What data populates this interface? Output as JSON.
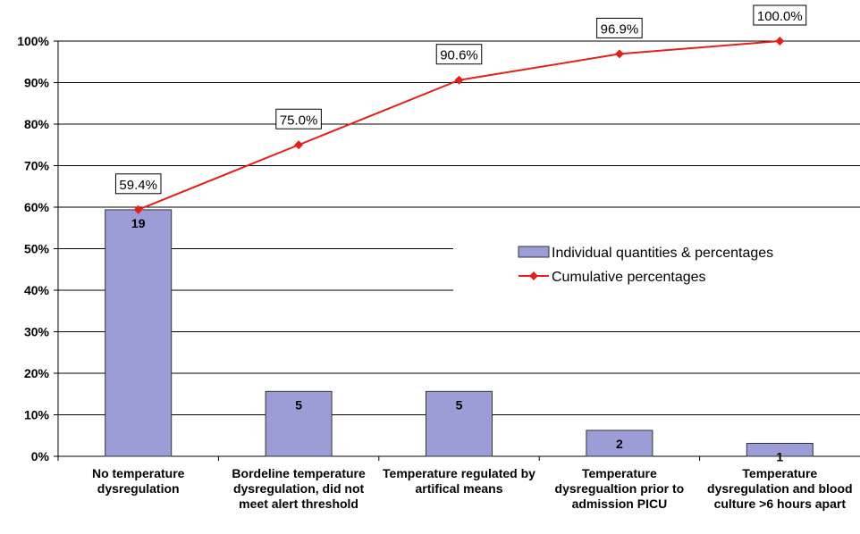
{
  "chart_data": {
    "type": "pareto",
    "categories": [
      "No temperature dysregulation",
      "Bordeline temperature dysregulation, did not meet alert threshold",
      "Temperature regulated by artifical means",
      "Temperature dysregualtion prior to admission PICU",
      "Temperature dysregulation and blood culture >6 hours apart"
    ],
    "series": [
      {
        "name": "Individual quantities & percentages",
        "type": "bar",
        "color": "#9c9cd6",
        "axis": "y2",
        "values": [
          19,
          5,
          5,
          2,
          1
        ]
      },
      {
        "name": "Cumulative percentages",
        "type": "line",
        "color": "#e3211c",
        "values": [
          59.4,
          75.0,
          90.6,
          96.9,
          100.0
        ],
        "value_labels": [
          "59.4%",
          "75.0%",
          "90.6%",
          "96.9%",
          "100.0%"
        ]
      }
    ],
    "ylim": [
      0,
      100
    ],
    "yticks": [
      {
        "value": 0,
        "label": "0%"
      },
      {
        "value": 10,
        "label": "10%"
      },
      {
        "value": 20,
        "label": "20%"
      },
      {
        "value": 30,
        "label": "30%"
      },
      {
        "value": 40,
        "label": "40%"
      },
      {
        "value": 50,
        "label": "50%"
      },
      {
        "value": 60,
        "label": "60%"
      },
      {
        "value": 70,
        "label": "70%"
      },
      {
        "value": 80,
        "label": "80%"
      },
      {
        "value": 90,
        "label": "90%"
      },
      {
        "value": 100,
        "label": "100%"
      }
    ],
    "y2lim": [
      0,
      32
    ],
    "grid": true,
    "legend": "right"
  }
}
